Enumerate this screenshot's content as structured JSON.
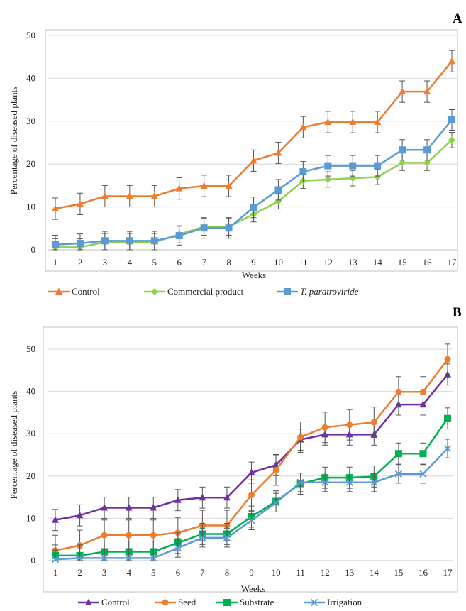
{
  "chart_data": [
    {
      "panel": "A",
      "type": "line",
      "xlabel": "Weeks",
      "ylabel": "Percentage of diseased plants",
      "x": [
        1,
        2,
        3,
        4,
        5,
        6,
        7,
        8,
        9,
        10,
        11,
        12,
        13,
        14,
        15,
        16,
        17
      ],
      "ylim": [
        0,
        50
      ],
      "yticks": [
        0,
        10,
        20,
        30,
        40,
        50
      ],
      "grid": true,
      "legend": "bottom",
      "series": [
        {
          "name": "Control",
          "color": "#ED7D31",
          "marker": "triangle",
          "values": [
            9.6,
            10.7,
            12.5,
            12.5,
            12.5,
            14.3,
            14.9,
            14.9,
            20.8,
            22.6,
            28.6,
            29.8,
            29.8,
            29.8,
            36.9,
            36.9,
            44.0
          ],
          "errors": [
            2.5,
            2.5,
            2.5,
            2.5,
            2.5,
            2.5,
            2.5,
            2.5,
            2.5,
            2.5,
            2.5,
            2.5,
            2.5,
            2.5,
            2.5,
            2.5,
            2.5
          ]
        },
        {
          "name": "Commercial product",
          "color": "#8FD14F",
          "marker": "diamond",
          "values": [
            0.6,
            0.6,
            1.8,
            1.8,
            1.8,
            3.6,
            5.4,
            5.4,
            8.3,
            11.3,
            16.1,
            16.4,
            16.7,
            17.0,
            20.3,
            20.3,
            25.6
          ],
          "errors": [
            2.0,
            2.0,
            2.0,
            2.0,
            2.0,
            2.0,
            2.0,
            2.0,
            1.8,
            1.8,
            1.8,
            1.8,
            1.8,
            1.8,
            1.8,
            1.8,
            1.8
          ]
        },
        {
          "name": "T. paratroviride",
          "italic": true,
          "color": "#5B9BD5",
          "marker": "square",
          "values": [
            1.2,
            1.5,
            2.1,
            2.1,
            2.1,
            3.3,
            5.1,
            5.1,
            9.9,
            14.0,
            18.2,
            19.6,
            19.6,
            19.6,
            23.3,
            23.3,
            30.3
          ],
          "errors": [
            2.2,
            2.2,
            2.2,
            2.2,
            2.2,
            2.2,
            2.4,
            2.4,
            2.4,
            2.4,
            2.4,
            2.4,
            2.4,
            2.4,
            2.4,
            2.4,
            2.4
          ]
        }
      ]
    },
    {
      "panel": "B",
      "type": "line",
      "xlabel": "Weeks",
      "ylabel": "Percentage of diseased plants",
      "x": [
        1,
        2,
        3,
        4,
        5,
        6,
        7,
        8,
        9,
        10,
        11,
        12,
        13,
        14,
        15,
        16,
        17
      ],
      "ylim": [
        0,
        55
      ],
      "yticks": [
        0,
        10,
        20,
        30,
        40,
        50
      ],
      "grid": true,
      "legend": "bottom",
      "series": [
        {
          "name": "Control",
          "color": "#7030A0",
          "marker": "triangle",
          "values": [
            9.6,
            10.7,
            12.5,
            12.5,
            12.5,
            14.3,
            14.9,
            14.9,
            20.8,
            22.6,
            28.6,
            29.8,
            29.8,
            29.8,
            36.9,
            36.9,
            44.0
          ],
          "errors": [
            2.5,
            2.5,
            2.5,
            2.5,
            2.5,
            2.5,
            2.5,
            2.5,
            2.5,
            2.5,
            2.5,
            2.5,
            2.5,
            2.5,
            2.5,
            2.5,
            2.5
          ]
        },
        {
          "name": "Seed",
          "color": "#ED7D31",
          "marker": "circle",
          "values": [
            2.4,
            3.6,
            6.0,
            6.0,
            6.0,
            6.6,
            8.3,
            8.3,
            15.5,
            21.4,
            29.2,
            31.5,
            32.1,
            32.7,
            39.9,
            39.9,
            47.6
          ],
          "errors": [
            3.6,
            3.6,
            3.6,
            3.6,
            3.6,
            3.6,
            3.6,
            3.6,
            3.6,
            3.6,
            3.6,
            3.6,
            3.6,
            3.6,
            3.6,
            3.6,
            3.6
          ]
        },
        {
          "name": "Substrate",
          "color": "#00B050",
          "marker": "square",
          "values": [
            1.2,
            1.2,
            2.1,
            2.1,
            2.1,
            4.2,
            6.3,
            6.3,
            10.4,
            14.0,
            18.2,
            19.6,
            19.6,
            19.9,
            25.3,
            25.3,
            33.6
          ],
          "errors": [
            2.5,
            2.5,
            2.5,
            2.5,
            2.5,
            2.5,
            2.5,
            2.5,
            2.5,
            2.5,
            2.5,
            2.5,
            2.5,
            2.5,
            2.5,
            2.5,
            2.5
          ]
        },
        {
          "name": "Irrigation",
          "color": "#5B9BD5",
          "marker": "x",
          "values": [
            0.3,
            0.6,
            0.6,
            0.6,
            0.6,
            3.0,
            5.4,
            5.4,
            9.5,
            13.7,
            18.5,
            18.5,
            18.5,
            18.5,
            20.5,
            20.5,
            26.5
          ],
          "errors": [
            2.2,
            2.2,
            2.2,
            2.2,
            2.2,
            2.2,
            2.2,
            2.2,
            2.2,
            2.2,
            2.2,
            2.2,
            2.2,
            2.2,
            2.2,
            2.2,
            2.2
          ]
        }
      ]
    }
  ]
}
